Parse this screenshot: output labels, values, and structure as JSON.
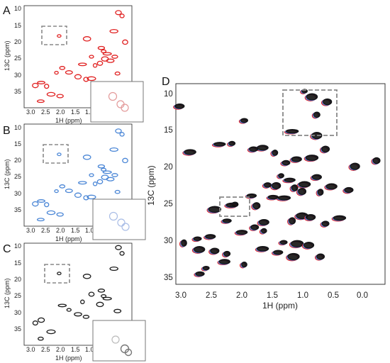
{
  "figure": {
    "panels": [
      "A",
      "B",
      "C",
      "D"
    ]
  },
  "chart_data": [
    {
      "panel": "A",
      "type": "scatter",
      "color": "#e02020",
      "xlabel": "1H (ppm)",
      "ylabel": "13C (ppm)",
      "xlim": [
        3.0,
        0.6
      ],
      "ylim": [
        9,
        37
      ],
      "xticks": [
        "3.0",
        "2.5",
        "2.0",
        "1.5",
        "1.0"
      ],
      "yticks": [
        "10",
        "15",
        "20",
        "25",
        "30",
        "35"
      ],
      "inset": true,
      "peaks": [
        [
          2.22,
          17.3
        ],
        [
          1.6,
          18.1
        ],
        [
          0.9,
          10.9
        ],
        [
          0.82,
          11.8
        ],
        [
          1.0,
          16.0
        ],
        [
          1.28,
          20.6
        ],
        [
          1.23,
          21.5
        ],
        [
          1.15,
          22.2
        ],
        [
          1.2,
          23.6
        ],
        [
          1.31,
          24.8
        ],
        [
          1.42,
          25.4
        ],
        [
          1.08,
          24.1
        ],
        [
          0.98,
          23.0
        ],
        [
          1.5,
          23.0
        ],
        [
          1.7,
          25.1
        ],
        [
          1.8,
          28.5
        ],
        [
          1.62,
          29.2
        ],
        [
          1.5,
          29.0
        ],
        [
          2.0,
          27.3
        ],
        [
          2.15,
          26.1
        ],
        [
          2.28,
          27.4
        ],
        [
          2.62,
          30.1
        ],
        [
          2.75,
          30.9
        ],
        [
          2.5,
          31.1
        ],
        [
          2.4,
          33.3
        ],
        [
          2.2,
          33.8
        ],
        [
          0.92,
          27.6
        ],
        [
          1.35,
          31.4
        ],
        [
          2.63,
          35.2
        ],
        [
          0.75,
          19.0
        ]
      ]
    },
    {
      "panel": "B",
      "type": "scatter",
      "color": "#4a86d6",
      "xlabel": "1H (ppm)",
      "ylabel": "13C (ppm)",
      "xlim": [
        3.0,
        0.6
      ],
      "ylim": [
        9,
        37
      ],
      "xticks": [
        "3.0",
        "2.5",
        "2.0",
        "1.5",
        "1.0"
      ],
      "yticks": [
        "10",
        "15",
        "20",
        "25",
        "30",
        "35"
      ],
      "inset": true,
      "peaks": [
        [
          2.22,
          17.3
        ],
        [
          1.6,
          18.1
        ],
        [
          0.9,
          10.9
        ],
        [
          0.82,
          11.8
        ],
        [
          1.0,
          16.0
        ],
        [
          1.28,
          20.6
        ],
        [
          1.23,
          21.5
        ],
        [
          1.15,
          22.2
        ],
        [
          1.2,
          23.6
        ],
        [
          1.31,
          24.8
        ],
        [
          1.42,
          25.4
        ],
        [
          1.08,
          24.1
        ],
        [
          0.98,
          23.0
        ],
        [
          1.5,
          23.0
        ],
        [
          1.7,
          25.1
        ],
        [
          1.8,
          28.5
        ],
        [
          1.62,
          29.2
        ],
        [
          1.5,
          29.0
        ],
        [
          2.0,
          27.3
        ],
        [
          2.15,
          26.1
        ],
        [
          2.28,
          27.4
        ],
        [
          2.62,
          30.1
        ],
        [
          2.75,
          30.9
        ],
        [
          2.5,
          31.1
        ],
        [
          2.4,
          33.3
        ],
        [
          2.2,
          33.8
        ],
        [
          0.92,
          27.6
        ],
        [
          1.35,
          31.4
        ],
        [
          2.63,
          35.2
        ],
        [
          0.75,
          19.0
        ]
      ]
    },
    {
      "panel": "C",
      "type": "scatter",
      "color": "#1a1a1a",
      "xlabel": "1H (ppm)",
      "ylabel": "13C (ppm)",
      "xlim": [
        3.0,
        0.6
      ],
      "ylim": [
        9,
        37
      ],
      "xticks": [
        "3.0",
        "2.5",
        "2.0",
        "1.5",
        "1.0"
      ],
      "yticks": [
        "10",
        "15",
        "20",
        "25",
        "30",
        "35"
      ],
      "inset": true,
      "peaks": [
        [
          2.22,
          17.3
        ],
        [
          1.6,
          18.1
        ],
        [
          0.9,
          10.2
        ],
        [
          0.82,
          11.8
        ],
        [
          1.0,
          16.0
        ],
        [
          1.28,
          22.0
        ],
        [
          1.23,
          23.5
        ],
        [
          1.15,
          24.2
        ],
        [
          1.31,
          25.8
        ],
        [
          1.5,
          23.0
        ],
        [
          1.7,
          25.1
        ],
        [
          1.8,
          28.5
        ],
        [
          1.62,
          29.2
        ],
        [
          2.0,
          27.3
        ],
        [
          2.15,
          26.1
        ],
        [
          2.62,
          30.1
        ],
        [
          2.75,
          30.9
        ],
        [
          2.4,
          33.3
        ],
        [
          0.92,
          27.6
        ],
        [
          2.63,
          35.2
        ]
      ]
    },
    {
      "panel": "D",
      "type": "scatter",
      "series": [
        {
          "color": "#e02020"
        },
        {
          "color": "#4a6fd0"
        },
        {
          "color": "#111111"
        }
      ],
      "xlabel": "1H (ppm)",
      "ylabel": "13C (ppm)",
      "xlim": [
        3.0,
        -0.4
      ],
      "ylim": [
        9,
        37
      ],
      "xticks": [
        "3.0",
        "2.5",
        "2.0",
        "1.5",
        "1.0",
        "0.5",
        "0.0"
      ],
      "yticks": [
        "10",
        "15",
        "20",
        "25",
        "30",
        "35"
      ],
      "boxes": [
        {
          "x": [
            1.22,
            0.45
          ],
          "y": [
            9.8,
            15.6
          ]
        },
        {
          "x": [
            2.3,
            1.85
          ],
          "y": [
            24.6,
            27.0
          ]
        }
      ],
      "peaks": [
        [
          0.92,
          10.1
        ],
        [
          0.8,
          10.9
        ],
        [
          0.55,
          11.6
        ],
        [
          0.72,
          13.4
        ],
        [
          2.78,
          18.6
        ],
        [
          2.95,
          12.2
        ],
        [
          1.9,
          14.2
        ],
        [
          1.12,
          15.7
        ],
        [
          0.72,
          16.3
        ],
        [
          0.58,
          18.2
        ],
        [
          1.4,
          18.7
        ],
        [
          1.6,
          18.0
        ],
        [
          1.75,
          18.2
        ],
        [
          2.1,
          17.4
        ],
        [
          2.3,
          17.5
        ],
        [
          0.1,
          20.6
        ],
        [
          -0.25,
          19.8
        ],
        [
          0.8,
          19.4
        ],
        [
          1.05,
          19.6
        ],
        [
          1.22,
          20.1
        ],
        [
          1.3,
          21.9
        ],
        [
          1.16,
          22.5
        ],
        [
          1.38,
          23.3
        ],
        [
          1.08,
          23.6
        ],
        [
          0.92,
          23.1
        ],
        [
          0.72,
          22.1
        ],
        [
          1.52,
          23.2
        ],
        [
          1.25,
          25.0
        ],
        [
          1.43,
          24.9
        ],
        [
          0.96,
          24.1
        ],
        [
          0.66,
          24.2
        ],
        [
          0.48,
          23.4
        ],
        [
          0.2,
          23.9
        ],
        [
          2.05,
          25.9
        ],
        [
          2.1,
          26.0
        ],
        [
          1.78,
          24.7
        ],
        [
          1.7,
          26.1
        ],
        [
          2.38,
          26.6
        ],
        [
          1.58,
          28.4
        ],
        [
          1.73,
          29.1
        ],
        [
          1.58,
          29.6
        ],
        [
          1.94,
          29.8
        ],
        [
          2.18,
          28.2
        ],
        [
          1.12,
          28.2
        ],
        [
          0.96,
          27.5
        ],
        [
          0.82,
          27.7
        ],
        [
          0.58,
          28.6
        ],
        [
          0.35,
          27.8
        ],
        [
          2.45,
          30.4
        ],
        [
          2.66,
          30.7
        ],
        [
          2.88,
          31.3
        ],
        [
          2.63,
          32.2
        ],
        [
          2.38,
          32.4
        ],
        [
          2.18,
          32.8
        ],
        [
          1.6,
          32.1
        ],
        [
          1.35,
          32.6
        ],
        [
          1.26,
          31.2
        ],
        [
          1.04,
          31.4
        ],
        [
          0.85,
          31.6
        ],
        [
          0.66,
          33.2
        ],
        [
          1.9,
          34.3
        ],
        [
          2.22,
          33.9
        ],
        [
          2.62,
          35.6
        ],
        [
          2.52,
          34.8
        ],
        [
          1.1,
          33.2
        ]
      ]
    }
  ]
}
